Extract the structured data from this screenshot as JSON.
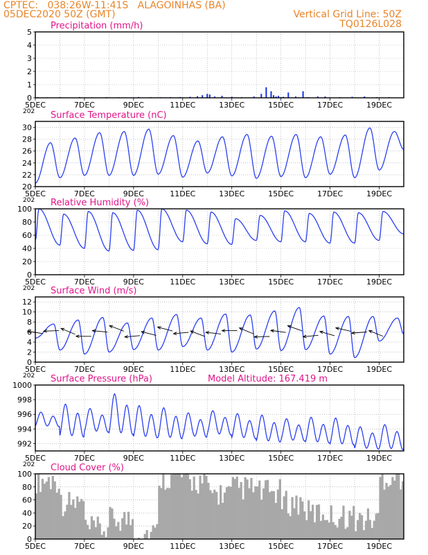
{
  "header": {
    "line1_left": "CPTEC:   038:26W-11:41S   ALAGOINHAS (BA)",
    "line2_left": "05DEC2020 50Z (GMT)",
    "line1_right": "Vertical Grid Line: 50Z",
    "line2_right": "TQ0126L028"
  },
  "colors": {
    "header": "#e8852a",
    "title": "#e0158a",
    "series": "#2a3ff0",
    "bars": "#1230e6",
    "cloud": "#a8a8a8",
    "grid": "#9a9a9a"
  },
  "x_ticks": [
    "5DEC",
    "7DEC",
    "9DEC",
    "11DEC",
    "13DEC",
    "15DEC",
    "17DEC",
    "19DEC"
  ],
  "x_cut_label": "202",
  "altitude_label": "Model Altitude: 167.419 m",
  "chart_data": [
    {
      "id": "precip",
      "type": "bar",
      "title": "Precipitation (mm/h)",
      "ylim": [
        0,
        5
      ],
      "yticks": [
        "0",
        "1",
        "2",
        "3",
        "4",
        "5"
      ],
      "x": [
        0.1,
        0.3,
        0.5,
        1.0,
        1.8,
        2.3,
        2.9,
        3.4,
        4.2,
        4.7,
        5.1,
        5.5,
        5.9,
        6.3,
        6.6,
        6.8,
        7.0,
        7.1,
        7.3,
        7.6,
        8.0,
        8.4,
        8.9,
        9.2,
        9.4,
        9.6,
        9.7,
        9.8,
        9.9,
        10.0,
        10.1,
        10.3,
        10.6,
        10.9,
        11.1,
        11.5,
        11.8,
        12.4,
        12.9,
        13.4,
        13.9,
        14.4
      ],
      "values": [
        0.05,
        0.03,
        0.04,
        0.05,
        0.06,
        0.04,
        0.05,
        0.04,
        0.06,
        0.05,
        0.04,
        0.05,
        0.06,
        0.08,
        0.12,
        0.2,
        0.3,
        0.25,
        0.1,
        0.15,
        0.08,
        0.05,
        0.1,
        0.3,
        0.8,
        0.5,
        0.2,
        0.1,
        0.15,
        0.05,
        0.08,
        0.4,
        0.1,
        0.5,
        0.05,
        0.1,
        0.1,
        0.05,
        0.08,
        0.1,
        0.05,
        0.05
      ]
    },
    {
      "id": "temp",
      "type": "line",
      "title": "Surface Temperature (nC)",
      "ylim": [
        20,
        31
      ],
      "yticks": [
        "20",
        "22",
        "24",
        "26",
        "28",
        "30"
      ],
      "days": 15,
      "min": [
        20.6,
        21.5,
        21.9,
        21.9,
        21.9,
        22.1,
        21.6,
        22.3,
        21.8,
        21.4,
        21.7,
        21.5,
        22.1,
        21.5,
        22.8
      ],
      "max": [
        27.4,
        28.2,
        29.1,
        29.3,
        29.7,
        28.6,
        27.7,
        28.4,
        28.8,
        28.5,
        28.8,
        28.4,
        28.7,
        29.9,
        29.3
      ],
      "peak_frac": 0.62,
      "end_value": 26.3
    },
    {
      "id": "rh",
      "type": "line",
      "title": "Relative Humidity (%)",
      "ylim": [
        0,
        100
      ],
      "yticks": [
        "0",
        "20",
        "40",
        "60",
        "80",
        "100"
      ],
      "days": 15,
      "min": [
        52,
        45,
        40,
        36,
        37,
        38,
        50,
        47,
        46,
        52,
        50,
        50,
        48,
        48,
        52
      ],
      "max": [
        100,
        92,
        96,
        94,
        98,
        100,
        98,
        95,
        85,
        90,
        97,
        93,
        95,
        94,
        96
      ],
      "peak_frac": 0.15,
      "end_value": 62
    },
    {
      "id": "wind",
      "type": "line",
      "title": "Surface Wind (m/s)",
      "ylim": [
        0,
        13
      ],
      "yticks": [
        "0",
        "2",
        "4",
        "6",
        "8",
        "10",
        "12"
      ],
      "days": 15,
      "min": [
        4.8,
        2.4,
        1.6,
        2.0,
        2.5,
        2.4,
        3.1,
        2.4,
        2.0,
        2.6,
        2.3,
        2.5,
        1.6,
        0.9,
        4.2
      ],
      "max": [
        7.6,
        8.4,
        8.9,
        7.8,
        8.8,
        9.5,
        8.8,
        9.6,
        9.4,
        10.2,
        10.9,
        9.2,
        9.1,
        9.1,
        8.8
      ],
      "peak_frac": 0.75,
      "end_value": 5.6
    },
    {
      "id": "pressure",
      "type": "line",
      "title": "Surface Pressure (hPa)",
      "ylim": [
        991,
        1000
      ],
      "yticks": [
        "992",
        "994",
        "996",
        "998",
        "1000"
      ],
      "days": 15,
      "lows": [
        994.1,
        992.4,
        993.2,
        992.6,
        992.3,
        992.2,
        992.5,
        992.8,
        992.3,
        991.8,
        992.0,
        991.7,
        991.4,
        990.9,
        990.8
      ],
      "highs": [
        996.3,
        997.4,
        996.8,
        998.8,
        997.2,
        996.9,
        996.2,
        996.5,
        996.1,
        995.9,
        995.4,
        995.6,
        995.5,
        994.3,
        994.6
      ]
    },
    {
      "id": "cloud",
      "type": "bar",
      "title": "Cloud Cover (%)",
      "ylim": [
        0,
        100
      ],
      "yticks": [
        "0",
        "20",
        "40",
        "60",
        "80",
        "100"
      ],
      "daily": [
        90,
        55,
        15,
        30,
        10,
        95,
        88,
        70,
        78,
        72,
        55,
        40,
        35,
        30,
        95
      ]
    }
  ]
}
